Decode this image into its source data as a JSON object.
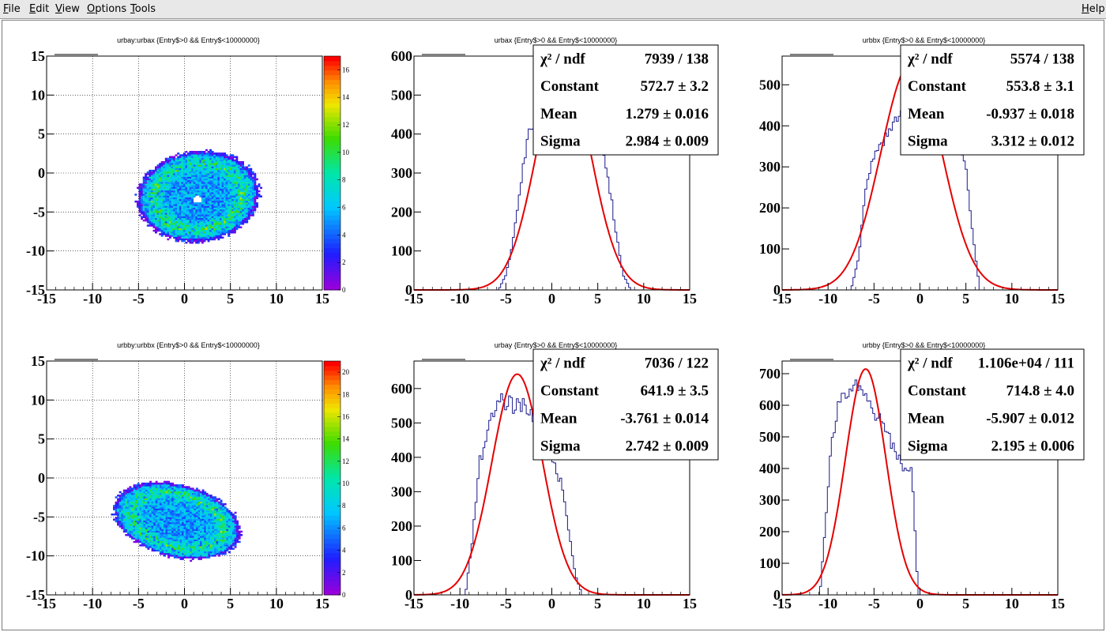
{
  "menu": {
    "file": {
      "accel": "F",
      "rest": "ile"
    },
    "edit": {
      "accel": "E",
      "rest": "dit"
    },
    "view": {
      "accel": "V",
      "rest": "iew"
    },
    "options": {
      "accel": "O",
      "rest": "ptions"
    },
    "tools": {
      "accel": "T",
      "rest": "ools"
    },
    "help": {
      "accel": "H",
      "rest": "elp"
    }
  },
  "colors": {
    "histogram": "#1a1a8c",
    "fit": "#e60000",
    "grid": "#000000"
  },
  "chart_data": [
    {
      "type": "heatmap",
      "title": "urbay:urbax {Entry$>0 && Entry$<10000000}",
      "xlim": [
        -15,
        15
      ],
      "ylim": [
        -15,
        15
      ],
      "xticks": [
        "-15",
        "-10",
        "-5",
        "0",
        "5",
        "10",
        "15"
      ],
      "yticks": [
        "15",
        "10",
        "5",
        "0",
        "-5",
        "-10",
        "-15"
      ],
      "grid": true,
      "palette_ticks": [
        "16",
        "14",
        "12",
        "10",
        "8",
        "6",
        "4",
        "2",
        "0"
      ],
      "z_max": 17,
      "blob": {
        "center": [
          1.4,
          -3.1
        ],
        "semi_axes": [
          6.7,
          5.8
        ],
        "rotation_deg": 15,
        "hole": [
          1.3,
          -3.5
        ]
      }
    },
    {
      "type": "bar",
      "title": "urbax {Entry$>0 && Entry$<10000000}",
      "xlim": [
        -15,
        15
      ],
      "ylim": [
        0,
        600
      ],
      "xticks": [
        "-15",
        "-10",
        "-5",
        "0",
        "5",
        "10",
        "15"
      ],
      "yticks": [
        "600",
        "500",
        "400",
        "300",
        "200",
        "100",
        "0"
      ],
      "grid": false,
      "hist": {
        "low": -5.8,
        "high": 8.6,
        "level": 400,
        "profile": [
          0,
          40,
          140,
          300,
          410,
          430,
          420,
          440,
          445,
          430,
          420,
          410,
          400,
          380,
          300,
          160,
          40,
          0
        ]
      },
      "fit": {
        "constant": 572.7,
        "mean": 1.279,
        "sigma": 2.984
      },
      "stats": [
        {
          "label": "χ² / ndf",
          "value": "7939 / 138"
        },
        {
          "label": "Constant",
          "value": "572.7 ± 3.2"
        },
        {
          "label": "Mean",
          "value": "1.279 ± 0.016"
        },
        {
          "label": "Sigma",
          "value": "2.984 ± 0.009"
        }
      ]
    },
    {
      "type": "bar",
      "title": "urbbx {Entry$>0 && Entry$<10000000}",
      "xlim": [
        -15,
        15
      ],
      "ylim": [
        0,
        570
      ],
      "xticks": [
        "-15",
        "-10",
        "-5",
        "0",
        "5",
        "10",
        "15"
      ],
      "yticks": [
        "500",
        "400",
        "300",
        "200",
        "100",
        "0"
      ],
      "grid": false,
      "hist": {
        "low": -7.5,
        "high": 6.5,
        "level": 420,
        "profile": [
          0,
          80,
          250,
          330,
          350,
          380,
          410,
          440,
          470,
          500,
          490,
          470,
          450,
          420,
          380,
          320,
          150,
          0
        ]
      },
      "fit": {
        "constant": 553.8,
        "mean": -0.937,
        "sigma": 3.312
      },
      "stats": [
        {
          "label": "χ² / ndf",
          "value": "5574 / 138"
        },
        {
          "label": "Constant",
          "value": "553.8 ± 3.1"
        },
        {
          "label": "Mean",
          "value": "-0.937 ± 0.018"
        },
        {
          "label": "Sigma",
          "value": "3.312 ± 0.012"
        }
      ]
    },
    {
      "type": "heatmap",
      "title": "urbby:urbbx {Entry$>0 && Entry$<10000000}",
      "xlim": [
        -15,
        15
      ],
      "ylim": [
        -15,
        15
      ],
      "xticks": [
        "-15",
        "-10",
        "-5",
        "0",
        "5",
        "10",
        "15"
      ],
      "yticks": [
        "15",
        "10",
        "5",
        "0",
        "-5",
        "-10",
        "-15"
      ],
      "grid": true,
      "palette_ticks": [
        "20",
        "18",
        "16",
        "14",
        "12",
        "10",
        "8",
        "6",
        "4",
        "2",
        "0"
      ],
      "z_max": 21,
      "blob": {
        "center": [
          -0.9,
          -5.6
        ],
        "semi_axes": [
          7.2,
          4.6
        ],
        "rotation_deg": -20,
        "hole": null
      }
    },
    {
      "type": "bar",
      "title": "urbay {Entry$>0 && Entry$<10000000}",
      "xlim": [
        -15,
        15
      ],
      "ylim": [
        0,
        680
      ],
      "xticks": [
        "-15",
        "-10",
        "-5",
        "0",
        "5",
        "10",
        "15"
      ],
      "yticks": [
        "600",
        "500",
        "400",
        "300",
        "200",
        "100",
        "0"
      ],
      "grid": false,
      "hist": {
        "low": -9.4,
        "high": 3.3,
        "level": 520,
        "profile": [
          0,
          160,
          380,
          460,
          520,
          560,
          560,
          550,
          560,
          540,
          510,
          480,
          430,
          380,
          320,
          200,
          60,
          0
        ]
      },
      "fit": {
        "constant": 641.9,
        "mean": -3.761,
        "sigma": 2.742
      },
      "stats": [
        {
          "label": "χ² / ndf",
          "value": "7036 / 122"
        },
        {
          "label": "Constant",
          "value": "641.9 ± 3.5"
        },
        {
          "label": "Mean",
          "value": "-3.761 ± 0.014"
        },
        {
          "label": "Sigma",
          "value": "2.742 ± 0.009"
        }
      ]
    },
    {
      "type": "bar",
      "title": "urbby {Entry$>0 && Entry$<10000000}",
      "xlim": [
        -15,
        15
      ],
      "ylim": [
        0,
        740
      ],
      "xticks": [
        "-15",
        "-10",
        "-5",
        "0",
        "5",
        "10",
        "15"
      ],
      "yticks": [
        "700",
        "600",
        "500",
        "400",
        "300",
        "200",
        "100",
        "0"
      ],
      "grid": false,
      "hist": {
        "low": -10.9,
        "high": -0.2,
        "level": 560,
        "profile": [
          0,
          220,
          480,
          580,
          620,
          650,
          660,
          640,
          620,
          590,
          560,
          530,
          500,
          460,
          420,
          390,
          390,
          0
        ]
      },
      "fit": {
        "constant": 714.8,
        "mean": -5.907,
        "sigma": 2.195
      },
      "stats": [
        {
          "label": "χ² / ndf",
          "value": "1.106e+04 / 111"
        },
        {
          "label": "Constant",
          "value": "714.8 ± 4.0"
        },
        {
          "label": "Mean",
          "value": "-5.907 ± 0.012"
        },
        {
          "label": "Sigma",
          "value": "2.195 ± 0.006"
        }
      ]
    }
  ]
}
